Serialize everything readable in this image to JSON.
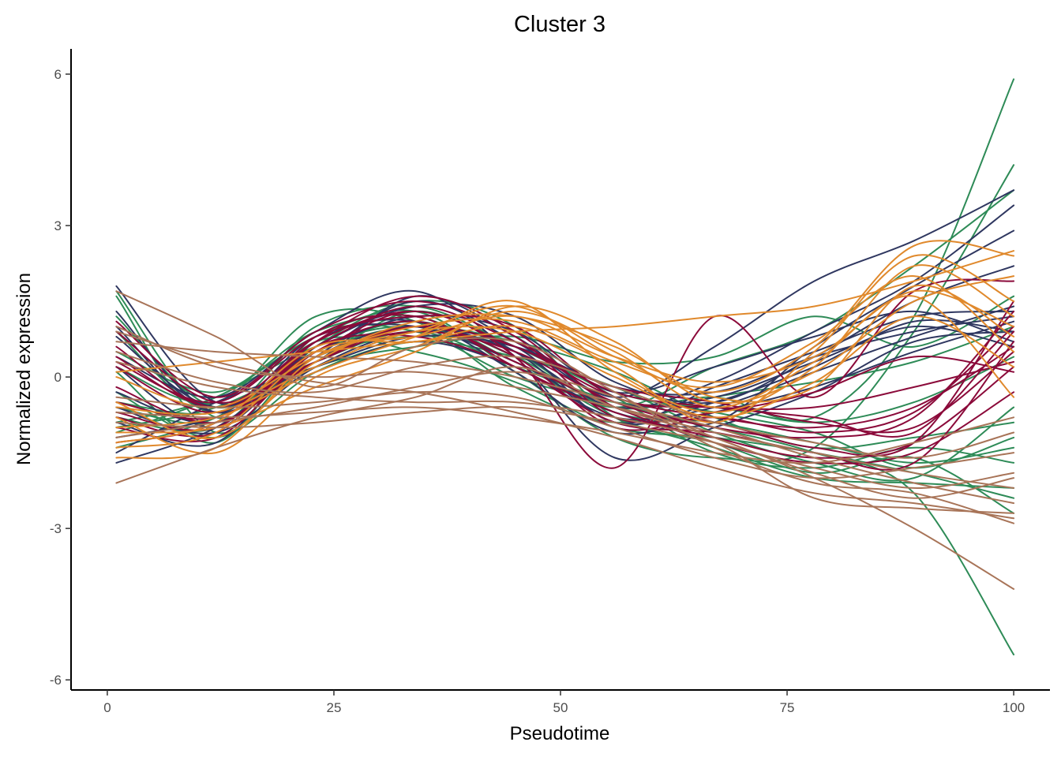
{
  "chart_data": {
    "type": "line",
    "title": "Cluster 3",
    "xlabel": "Pseudotime",
    "ylabel": "Normalized expression",
    "xlim": [
      -4,
      104
    ],
    "ylim": [
      -6.2,
      6.5
    ],
    "xticks": [
      0,
      25,
      50,
      75,
      100
    ],
    "yticks": [
      -6,
      -3,
      0,
      3,
      6
    ],
    "grid": false,
    "legend": "none",
    "x": [
      1,
      12,
      23,
      34,
      45,
      56,
      67,
      78,
      89,
      100
    ],
    "series": [
      {
        "color": "#2E8B57",
        "values": [
          1.7,
          -0.8,
          0.5,
          1.1,
          0.4,
          -0.6,
          -0.4,
          -0.8,
          1.2,
          5.9
        ]
      },
      {
        "color": "#2E8B57",
        "values": [
          -0.9,
          -0.4,
          0.8,
          1.3,
          0.1,
          -1.2,
          -1.6,
          -1.4,
          0.9,
          4.2
        ]
      },
      {
        "color": "#2E8B57",
        "values": [
          -1.0,
          -0.6,
          0.3,
          0.9,
          0.2,
          -0.5,
          -1.0,
          -1.5,
          -2.3,
          -5.5
        ]
      },
      {
        "color": "#2E8B57",
        "values": [
          0.9,
          -0.7,
          1.0,
          1.4,
          0.6,
          -0.3,
          -0.7,
          -1.1,
          -1.8,
          -1.2
        ]
      },
      {
        "color": "#2E8B57",
        "values": [
          -0.6,
          -0.9,
          0.2,
          0.6,
          0.8,
          0.3,
          0.4,
          1.2,
          0.6,
          1.6
        ]
      },
      {
        "color": "#2E8B57",
        "values": [
          1.6,
          -1.1,
          0.6,
          1.5,
          1.0,
          -0.8,
          -1.3,
          -1.9,
          -1.6,
          -2.7
        ]
      },
      {
        "color": "#2E8B57",
        "values": [
          -0.3,
          -1.2,
          0.1,
          0.7,
          0.4,
          -0.2,
          -1.1,
          -1.7,
          -2.0,
          -0.6
        ]
      },
      {
        "color": "#2E8B57",
        "values": [
          0.2,
          -0.5,
          1.2,
          1.1,
          -0.2,
          -0.9,
          -0.4,
          -0.1,
          0.3,
          1.0
        ]
      },
      {
        "color": "#2E8B57",
        "values": [
          -1.4,
          -0.8,
          0.4,
          0.8,
          0.6,
          -0.4,
          -1.5,
          -1.8,
          -1.4,
          -1.7
        ]
      },
      {
        "color": "#2E8B57",
        "values": [
          0.5,
          -0.3,
          0.9,
          1.2,
          0.3,
          -0.6,
          0.2,
          0.9,
          2.2,
          3.7
        ]
      },
      {
        "color": "#2E8B57",
        "values": [
          -0.8,
          -1.0,
          0.7,
          0.5,
          -0.1,
          -1.0,
          -1.2,
          -1.5,
          -1.9,
          -2.4
        ]
      },
      {
        "color": "#2E8B57",
        "values": [
          1.2,
          -0.6,
          0.5,
          1.0,
          0.7,
          0.1,
          -0.8,
          -1.4,
          -1.2,
          -0.9
        ]
      },
      {
        "color": "#2E8B57",
        "values": [
          -0.5,
          -0.7,
          0.3,
          1.3,
          0.5,
          -0.7,
          -0.9,
          -1.3,
          -1.7,
          -1.4
        ]
      },
      {
        "color": "#2E8B57",
        "values": [
          0.1,
          -1.3,
          0.8,
          0.9,
          0.0,
          -0.5,
          -0.6,
          -0.9,
          -0.5,
          0.4
        ]
      },
      {
        "color": "#2E8B57",
        "values": [
          -1.1,
          -0.4,
          0.6,
          1.0,
          0.3,
          -0.8,
          -1.4,
          -2.0,
          -2.1,
          -2.2
        ]
      },
      {
        "color": "#2F3760",
        "values": [
          1.8,
          -0.5,
          0.3,
          1.6,
          0.8,
          -0.4,
          0.6,
          1.9,
          2.7,
          3.7
        ]
      },
      {
        "color": "#2F3760",
        "values": [
          -1.7,
          -1.0,
          0.4,
          1.0,
          0.5,
          -0.6,
          -0.1,
          0.9,
          1.9,
          3.4
        ]
      },
      {
        "color": "#2F3760",
        "values": [
          1.3,
          -0.7,
          0.6,
          1.4,
          1.2,
          -0.1,
          -0.5,
          0.4,
          1.5,
          2.2
        ]
      },
      {
        "color": "#2F3760",
        "values": [
          -0.6,
          -1.1,
          0.2,
          0.9,
          0.6,
          -0.9,
          -0.2,
          0.5,
          1.2,
          1.3
        ]
      },
      {
        "color": "#2F3760",
        "values": [
          0.4,
          -0.4,
          0.9,
          1.7,
          0.4,
          -1.6,
          -1.0,
          -0.3,
          0.7,
          0.9
        ]
      },
      {
        "color": "#2F3760",
        "values": [
          -1.2,
          -0.8,
          0.1,
          0.7,
          0.2,
          -0.8,
          -0.6,
          0.1,
          0.8,
          1.4
        ]
      },
      {
        "color": "#2F3760",
        "values": [
          0.8,
          -0.6,
          0.5,
          1.2,
          0.9,
          -0.3,
          0.2,
          0.8,
          1.3,
          0.7
        ]
      },
      {
        "color": "#2F3760",
        "values": [
          -0.9,
          -1.3,
          0.7,
          1.1,
          0.1,
          -1.1,
          -0.7,
          -0.2,
          0.5,
          1.1
        ]
      },
      {
        "color": "#2F3760",
        "values": [
          -0.3,
          -0.9,
          0.4,
          1.5,
          0.7,
          -0.5,
          -0.4,
          0.3,
          1.0,
          0.6
        ]
      },
      {
        "color": "#2F3760",
        "values": [
          1.0,
          -0.7,
          0.8,
          1.0,
          0.3,
          -0.7,
          -0.9,
          0.6,
          1.8,
          2.9
        ]
      },
      {
        "color": "#2F3760",
        "values": [
          -1.5,
          -0.5,
          0.2,
          0.8,
          0.6,
          -0.2,
          -0.3,
          0.4,
          0.9,
          1.2
        ]
      },
      {
        "color": "#2F3760",
        "values": [
          0.2,
          -1.0,
          0.6,
          1.3,
          0.5,
          -0.9,
          -0.5,
          0.2,
          1.1,
          0.9
        ]
      },
      {
        "color": "#8B0A3A",
        "values": [
          0.4,
          -0.6,
          0.5,
          1.3,
          0.4,
          -1.8,
          1.2,
          -0.4,
          1.7,
          1.9
        ]
      },
      {
        "color": "#8B0A3A",
        "values": [
          -1.3,
          -0.9,
          0.7,
          1.6,
          0.9,
          -0.6,
          -0.9,
          -1.4,
          -1.3,
          1.5
        ]
      },
      {
        "color": "#8B0A3A",
        "values": [
          0.9,
          -0.5,
          0.3,
          1.0,
          0.6,
          -0.4,
          -0.8,
          -1.0,
          -0.6,
          0.6
        ]
      },
      {
        "color": "#8B0A3A",
        "values": [
          -0.8,
          -1.1,
          0.8,
          1.2,
          0.2,
          -0.7,
          -1.2,
          -1.6,
          -1.3,
          0.2
        ]
      },
      {
        "color": "#8B0A3A",
        "values": [
          0.2,
          -0.7,
          0.6,
          1.4,
          0.7,
          -0.3,
          -0.6,
          -0.8,
          -1.1,
          0.9
        ]
      },
      {
        "color": "#8B0A3A",
        "values": [
          -0.5,
          -0.8,
          0.4,
          0.9,
          0.5,
          -0.5,
          -1.0,
          -1.2,
          -0.8,
          1.3
        ]
      },
      {
        "color": "#8B0A3A",
        "values": [
          1.1,
          -0.4,
          0.9,
          1.5,
          0.8,
          -0.8,
          -0.7,
          -0.3,
          0.4,
          0.1
        ]
      },
      {
        "color": "#8B0A3A",
        "values": [
          -1.0,
          -1.2,
          0.5,
          1.1,
          0.3,
          -0.6,
          -1.3,
          -1.7,
          -1.5,
          -0.3
        ]
      },
      {
        "color": "#8B0A3A",
        "values": [
          0.6,
          -0.6,
          0.7,
          1.3,
          0.6,
          -0.2,
          -0.5,
          -0.9,
          -1.0,
          0.5
        ]
      },
      {
        "color": "#8B0A3A",
        "values": [
          -0.2,
          -0.9,
          0.3,
          1.0,
          0.4,
          -1.0,
          -0.8,
          -1.1,
          -0.7,
          1.0
        ]
      },
      {
        "color": "#8B0A3A",
        "values": [
          0.3,
          -0.5,
          0.8,
          1.2,
          1.0,
          -0.4,
          -0.6,
          -0.6,
          -0.2,
          0.3
        ]
      },
      {
        "color": "#8B0A3A",
        "values": [
          -0.7,
          -1.0,
          0.6,
          0.8,
          0.2,
          -0.9,
          -1.1,
          -1.5,
          -1.7,
          0.7
        ]
      },
      {
        "color": "#E0892C",
        "values": [
          -1.6,
          -1.4,
          0.4,
          0.9,
          1.4,
          0.4,
          -0.3,
          0.6,
          2.6,
          2.4
        ]
      },
      {
        "color": "#E0892C",
        "values": [
          0.1,
          0.3,
          0.5,
          0.7,
          0.9,
          1.0,
          1.2,
          1.4,
          1.9,
          2.5
        ]
      },
      {
        "color": "#E0892C",
        "values": [
          -1.0,
          -0.8,
          0.1,
          0.8,
          1.5,
          0.1,
          -0.7,
          0.2,
          2.2,
          1.2
        ]
      },
      {
        "color": "#E0892C",
        "values": [
          -0.5,
          -1.2,
          0.3,
          1.1,
          1.2,
          0.6,
          -0.4,
          -0.2,
          1.8,
          0.8
        ]
      },
      {
        "color": "#E0892C",
        "values": [
          -1.3,
          -0.9,
          0.6,
          0.7,
          1.0,
          0.2,
          -0.9,
          0.5,
          2.4,
          1.5
        ]
      },
      {
        "color": "#E0892C",
        "values": [
          -0.8,
          -1.5,
          0.0,
          0.6,
          1.3,
          0.5,
          -0.6,
          0.3,
          1.6,
          -0.4
        ]
      },
      {
        "color": "#E0892C",
        "values": [
          0.0,
          -0.6,
          0.4,
          1.0,
          1.1,
          0.3,
          -0.2,
          0.7,
          2.0,
          0.5
        ]
      },
      {
        "color": "#E0892C",
        "values": [
          -1.1,
          -1.0,
          -0.2,
          0.5,
          1.4,
          0.7,
          -0.5,
          0.1,
          1.5,
          2.0
        ]
      },
      {
        "color": "#E0892C",
        "values": [
          -0.6,
          -0.7,
          0.2,
          0.9,
          0.9,
          0.0,
          -0.8,
          -0.1,
          1.2,
          0.2
        ]
      },
      {
        "color": "#E0892C",
        "values": [
          -1.4,
          -1.1,
          0.5,
          0.8,
          1.2,
          0.4,
          -0.1,
          0.4,
          1.7,
          1.0
        ]
      },
      {
        "color": "#A87458",
        "values": [
          -2.1,
          -1.4,
          -0.8,
          -0.4,
          0.2,
          -0.6,
          -1.2,
          -2.0,
          -3.0,
          -4.2
        ]
      },
      {
        "color": "#A87458",
        "values": [
          1.7,
          0.8,
          -0.2,
          0.6,
          0.7,
          -0.3,
          -1.4,
          -2.1,
          -2.3,
          -2.9
        ]
      },
      {
        "color": "#A87458",
        "values": [
          0.7,
          0.5,
          0.4,
          0.3,
          0.0,
          -0.5,
          -1.0,
          -1.6,
          -2.1,
          -2.5
        ]
      },
      {
        "color": "#A87458",
        "values": [
          -0.9,
          -1.0,
          -0.9,
          -0.7,
          -0.6,
          -0.9,
          -1.3,
          -1.8,
          -2.2,
          -1.9
        ]
      },
      {
        "color": "#A87458",
        "values": [
          0.3,
          -0.2,
          -0.4,
          -0.5,
          -0.5,
          -0.8,
          -1.3,
          -2.4,
          -2.6,
          -2.7
        ]
      },
      {
        "color": "#A87458",
        "values": [
          -0.4,
          -0.6,
          -0.5,
          -0.3,
          -0.4,
          -1.0,
          -1.6,
          -2.0,
          -1.8,
          -1.5
        ]
      },
      {
        "color": "#A87458",
        "values": [
          1.0,
          0.2,
          0.0,
          0.1,
          -0.2,
          -0.6,
          -1.1,
          -1.5,
          -1.9,
          -2.2
        ]
      },
      {
        "color": "#A87458",
        "values": [
          -1.2,
          -0.9,
          -0.6,
          -0.2,
          0.1,
          -0.4,
          -1.2,
          -1.9,
          -2.4,
          -2.0
        ]
      },
      {
        "color": "#A87458",
        "values": [
          0.5,
          -0.1,
          -0.3,
          0.2,
          0.4,
          -0.2,
          -0.9,
          -1.3,
          -1.6,
          -1.1
        ]
      },
      {
        "color": "#A87458",
        "values": [
          -0.7,
          -0.8,
          -0.7,
          -0.6,
          -0.8,
          -1.1,
          -1.5,
          -1.7,
          -1.3,
          -0.8
        ]
      },
      {
        "color": "#A87458",
        "values": [
          0.9,
          0.3,
          -0.1,
          -0.3,
          -0.7,
          -1.2,
          -1.8,
          -2.3,
          -2.5,
          -2.8
        ]
      }
    ]
  }
}
